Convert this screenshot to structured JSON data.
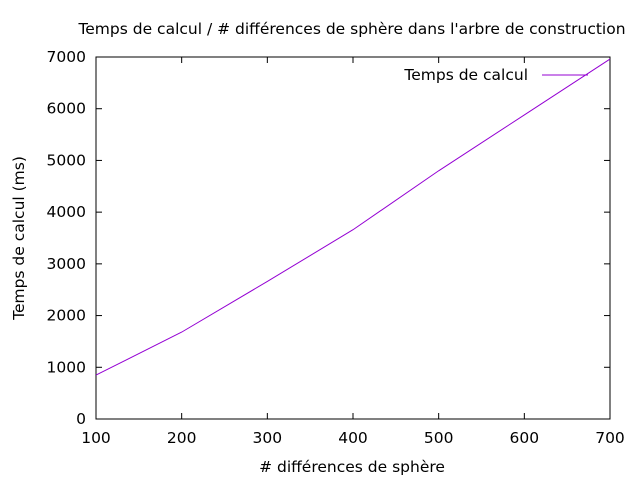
{
  "chart_data": {
    "type": "line",
    "title": "Temps de calcul / # différences de sphère dans l'arbre de construction",
    "xlabel": "# différences de sphère",
    "ylabel": "Temps de calcul (ms)",
    "xlim": [
      100,
      700
    ],
    "ylim": [
      0,
      7000
    ],
    "x_ticks": [
      100,
      200,
      300,
      400,
      500,
      600,
      700
    ],
    "y_ticks": [
      0,
      1000,
      2000,
      3000,
      4000,
      5000,
      6000,
      7000
    ],
    "grid": false,
    "legend_position": "top-right",
    "series": [
      {
        "name": "Temps de calcul",
        "color": "#9400d3",
        "x": [
          100,
          200,
          300,
          400,
          500,
          600,
          700
        ],
        "y": [
          850,
          1680,
          2660,
          3660,
          4800,
          5880,
          6960
        ]
      }
    ]
  }
}
